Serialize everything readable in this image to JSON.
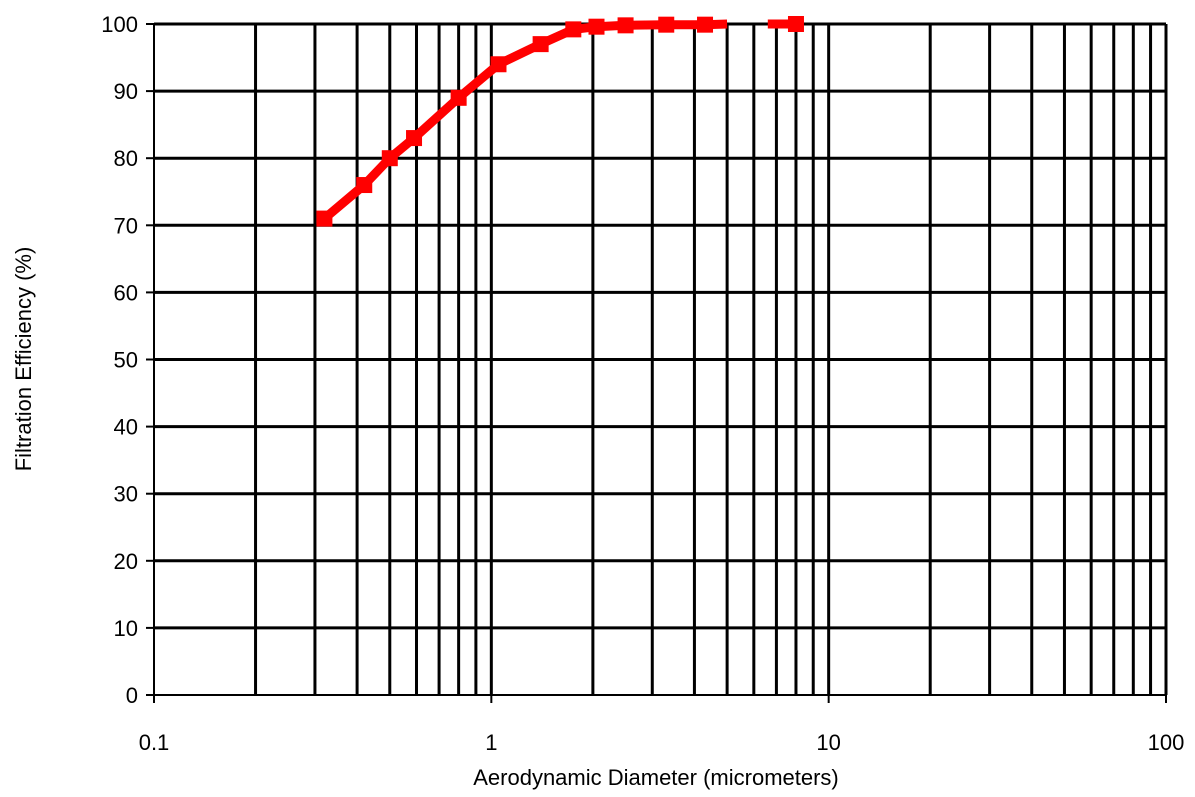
{
  "chart_data": {
    "type": "line",
    "title": "",
    "xlabel": "Aerodynamic Diameter (micrometers)",
    "ylabel": "Filtration Efficiency (%)",
    "x_scale": "log",
    "xlim": [
      0.1,
      100
    ],
    "ylim": [
      0,
      100
    ],
    "x_ticks": [
      0.1,
      1,
      10,
      100
    ],
    "x_tick_labels": [
      "0.1",
      "1",
      "10",
      "100"
    ],
    "y_ticks": [
      0,
      10,
      20,
      30,
      40,
      50,
      60,
      70,
      80,
      90,
      100
    ],
    "y_tick_labels": [
      "0",
      "10",
      "20",
      "30",
      "40",
      "50",
      "60",
      "70",
      "80",
      "90",
      "100"
    ],
    "grid": true,
    "legend": "none",
    "series": [
      {
        "color": "#ff0000",
        "marker": "square",
        "segments": [
          {
            "x": [
              0.32,
              0.42,
              0.5,
              0.59,
              0.8,
              1.05,
              1.4,
              1.75,
              2.05,
              2.5,
              3.3,
              4.3,
              5.0
            ],
            "y": [
              71,
              76,
              80,
              83,
              89,
              94,
              97,
              99.2,
              99.6,
              99.8,
              99.9,
              99.9,
              100
            ]
          },
          {
            "x": [
              6.6,
              8.0
            ],
            "y": [
              100,
              100
            ]
          }
        ],
        "markers_x": [
          0.32,
          0.42,
          0.5,
          0.59,
          0.8,
          1.05,
          1.4,
          1.75,
          2.05,
          2.5,
          3.3,
          4.3,
          8.0
        ],
        "markers_y": [
          71,
          76,
          80,
          83,
          89,
          94,
          97,
          99.2,
          99.6,
          99.8,
          99.9,
          99.9,
          100
        ]
      }
    ]
  }
}
